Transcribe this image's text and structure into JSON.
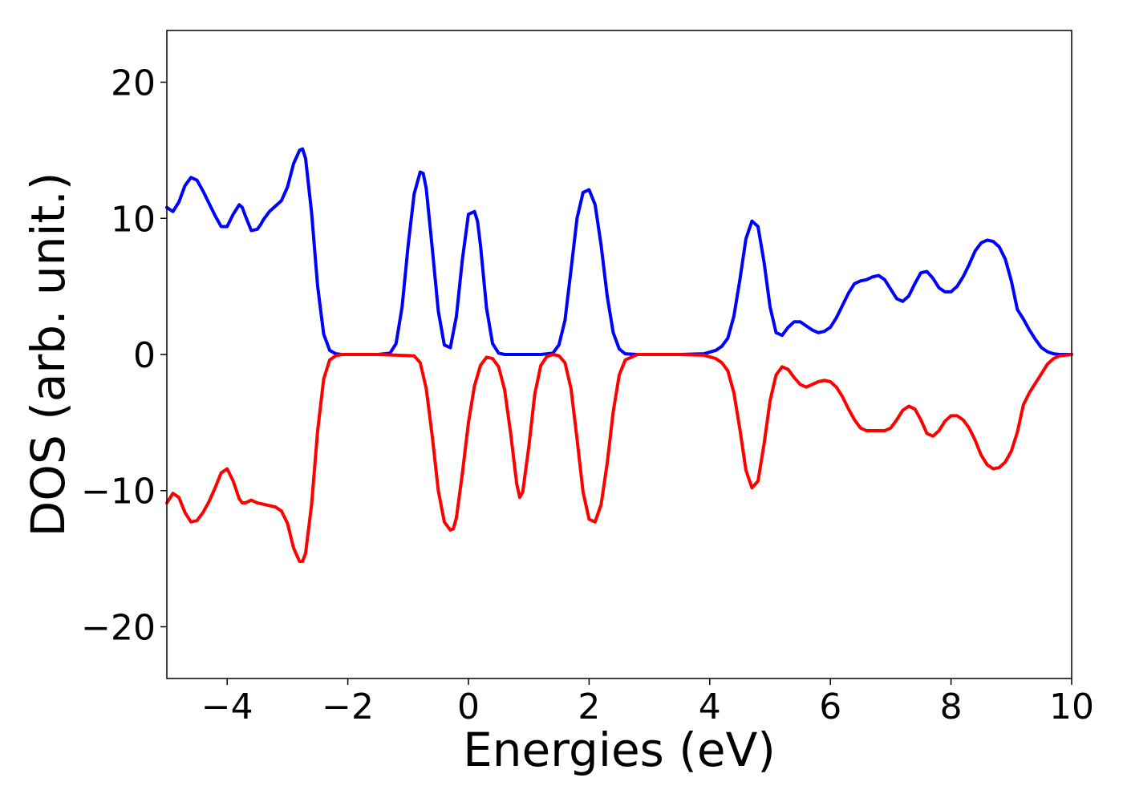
{
  "chart_data": {
    "type": "line",
    "xlabel": "Energies (eV)",
    "ylabel": "DOS (arb. unit.)",
    "xlim": [
      -5,
      10
    ],
    "ylim": [
      -23.8,
      23.8
    ],
    "xticks": [
      -4,
      -2,
      0,
      2,
      4,
      6,
      8,
      10
    ],
    "xtick_labels": [
      "−4",
      "−2",
      "0",
      "2",
      "4",
      "6",
      "8",
      "10"
    ],
    "yticks": [
      20,
      10,
      0,
      -10,
      -20
    ],
    "ytick_labels": [
      "20",
      "10",
      "0",
      "−10",
      "−20"
    ],
    "grid": false,
    "legend": false,
    "series": [
      {
        "color": "#0000ff",
        "x": [
          -5.0,
          -4.9,
          -4.8,
          -4.7,
          -4.6,
          -4.5,
          -4.4,
          -4.3,
          -4.2,
          -4.1,
          -4.0,
          -3.9,
          -3.8,
          -3.75,
          -3.7,
          -3.6,
          -3.5,
          -3.45,
          -3.4,
          -3.3,
          -3.2,
          -3.1,
          -3.0,
          -2.9,
          -2.8,
          -2.75,
          -2.7,
          -2.6,
          -2.5,
          -2.4,
          -2.3,
          -2.2,
          -2.1,
          -2.0,
          -1.5,
          -1.3,
          -1.2,
          -1.1,
          -1.0,
          -0.9,
          -0.8,
          -0.75,
          -0.7,
          -0.6,
          -0.5,
          -0.4,
          -0.3,
          -0.2,
          -0.1,
          0.0,
          0.1,
          0.15,
          0.2,
          0.3,
          0.4,
          0.5,
          0.6,
          0.7,
          0.8,
          1.2,
          1.4,
          1.5,
          1.6,
          1.7,
          1.8,
          1.9,
          2.0,
          2.1,
          2.2,
          2.3,
          2.4,
          2.5,
          2.6,
          2.8,
          3.5,
          3.9,
          4.1,
          4.2,
          4.3,
          4.4,
          4.5,
          4.6,
          4.7,
          4.8,
          4.9,
          5.0,
          5.1,
          5.2,
          5.3,
          5.4,
          5.5,
          5.6,
          5.7,
          5.8,
          5.9,
          6.0,
          6.1,
          6.2,
          6.3,
          6.4,
          6.5,
          6.6,
          6.7,
          6.8,
          6.9,
          7.0,
          7.1,
          7.2,
          7.3,
          7.4,
          7.5,
          7.6,
          7.7,
          7.8,
          7.9,
          8.0,
          8.1,
          8.2,
          8.3,
          8.4,
          8.5,
          8.6,
          8.7,
          8.8,
          8.9,
          9.0,
          9.1,
          9.2,
          9.3,
          9.4,
          9.5,
          9.6,
          9.7,
          9.8,
          10.0
        ],
        "y": [
          10.8,
          10.5,
          11.2,
          12.4,
          13.0,
          12.8,
          12.0,
          11.1,
          10.2,
          9.4,
          9.4,
          10.3,
          11.0,
          10.8,
          10.2,
          9.1,
          9.2,
          9.5,
          9.9,
          10.5,
          10.9,
          11.3,
          12.3,
          14.0,
          15.0,
          15.1,
          14.4,
          10.4,
          5.0,
          1.5,
          0.3,
          0.05,
          0.0,
          0.0,
          0.0,
          0.1,
          0.8,
          3.5,
          8.0,
          11.8,
          13.4,
          13.3,
          12.2,
          7.8,
          3.2,
          0.7,
          0.5,
          2.8,
          7.0,
          10.3,
          10.5,
          9.8,
          8.0,
          3.4,
          0.8,
          0.1,
          0.0,
          0.0,
          0.0,
          0.0,
          0.1,
          0.7,
          2.5,
          6.2,
          10.0,
          11.9,
          12.1,
          11.0,
          8.0,
          4.3,
          1.6,
          0.4,
          0.05,
          0.0,
          0.0,
          0.05,
          0.3,
          0.6,
          1.2,
          2.8,
          5.5,
          8.5,
          9.8,
          9.4,
          6.8,
          3.5,
          1.6,
          1.4,
          2.0,
          2.4,
          2.4,
          2.1,
          1.8,
          1.6,
          1.7,
          2.0,
          2.7,
          3.6,
          4.5,
          5.2,
          5.4,
          5.5,
          5.7,
          5.8,
          5.5,
          4.8,
          4.1,
          3.9,
          4.3,
          5.2,
          6.0,
          6.1,
          5.6,
          4.9,
          4.6,
          4.6,
          5.0,
          5.7,
          6.6,
          7.6,
          8.2,
          8.4,
          8.3,
          7.9,
          7.0,
          5.4,
          3.3,
          2.6,
          1.8,
          1.1,
          0.5,
          0.2,
          0.05,
          0.0,
          0.0
        ]
      },
      {
        "color": "#ff0000",
        "x": [
          -5.0,
          -4.9,
          -4.8,
          -4.7,
          -4.6,
          -4.5,
          -4.4,
          -4.3,
          -4.2,
          -4.1,
          -4.0,
          -3.9,
          -3.8,
          -3.75,
          -3.7,
          -3.6,
          -3.5,
          -3.4,
          -3.3,
          -3.2,
          -3.1,
          -3.0,
          -2.9,
          -2.8,
          -2.75,
          -2.7,
          -2.6,
          -2.5,
          -2.4,
          -2.3,
          -2.2,
          -2.1,
          -2.0,
          -1.5,
          -0.9,
          -0.8,
          -0.7,
          -0.6,
          -0.5,
          -0.4,
          -0.3,
          -0.25,
          -0.2,
          -0.1,
          0.0,
          0.1,
          0.2,
          0.3,
          0.4,
          0.5,
          0.6,
          0.7,
          0.8,
          0.85,
          0.9,
          1.0,
          1.1,
          1.2,
          1.3,
          1.4,
          1.5,
          1.6,
          1.7,
          1.8,
          1.9,
          2.0,
          2.1,
          2.2,
          2.3,
          2.4,
          2.5,
          2.6,
          2.8,
          3.5,
          3.9,
          4.1,
          4.2,
          4.3,
          4.4,
          4.5,
          4.6,
          4.7,
          4.8,
          4.9,
          5.0,
          5.1,
          5.2,
          5.3,
          5.4,
          5.5,
          5.6,
          5.7,
          5.8,
          5.9,
          6.0,
          6.1,
          6.2,
          6.3,
          6.4,
          6.5,
          6.6,
          6.7,
          6.8,
          6.9,
          7.0,
          7.1,
          7.2,
          7.3,
          7.4,
          7.5,
          7.6,
          7.7,
          7.8,
          7.9,
          8.0,
          8.1,
          8.2,
          8.3,
          8.4,
          8.5,
          8.6,
          8.7,
          8.8,
          8.9,
          9.0,
          9.1,
          9.2,
          9.3,
          9.4,
          9.5,
          9.6,
          9.7,
          9.8,
          10.0
        ],
        "y": [
          -10.9,
          -10.2,
          -10.5,
          -11.6,
          -12.3,
          -12.2,
          -11.6,
          -10.8,
          -9.8,
          -8.7,
          -8.4,
          -9.3,
          -10.6,
          -10.9,
          -10.9,
          -10.7,
          -10.9,
          -11.0,
          -11.1,
          -11.2,
          -11.5,
          -12.4,
          -14.2,
          -15.2,
          -15.2,
          -14.6,
          -11.0,
          -5.6,
          -1.8,
          -0.4,
          -0.1,
          0.0,
          0.0,
          0.0,
          -0.1,
          -0.6,
          -2.5,
          -6.0,
          -10.0,
          -12.3,
          -12.9,
          -12.8,
          -12.0,
          -8.7,
          -5.0,
          -2.3,
          -0.8,
          -0.2,
          -0.3,
          -0.9,
          -2.6,
          -5.8,
          -9.5,
          -10.5,
          -10.1,
          -6.8,
          -2.9,
          -0.8,
          -0.15,
          0.0,
          -0.1,
          -0.6,
          -2.5,
          -6.2,
          -10.1,
          -12.1,
          -12.3,
          -11.0,
          -8.0,
          -4.2,
          -1.5,
          -0.4,
          0.0,
          0.0,
          -0.05,
          -0.3,
          -0.6,
          -1.2,
          -2.8,
          -5.5,
          -8.5,
          -9.8,
          -9.3,
          -6.6,
          -3.4,
          -1.5,
          -0.9,
          -1.1,
          -1.7,
          -2.2,
          -2.4,
          -2.2,
          -2.0,
          -1.9,
          -2.0,
          -2.4,
          -3.1,
          -4.0,
          -4.8,
          -5.4,
          -5.6,
          -5.6,
          -5.6,
          -5.6,
          -5.4,
          -4.8,
          -4.1,
          -3.8,
          -4.0,
          -4.8,
          -5.8,
          -6.0,
          -5.6,
          -4.9,
          -4.5,
          -4.5,
          -4.8,
          -5.4,
          -6.3,
          -7.4,
          -8.1,
          -8.4,
          -8.3,
          -7.9,
          -7.1,
          -5.7,
          -3.7,
          -2.8,
          -2.1,
          -1.4,
          -0.7,
          -0.3,
          -0.1,
          0.0
        ]
      }
    ]
  }
}
